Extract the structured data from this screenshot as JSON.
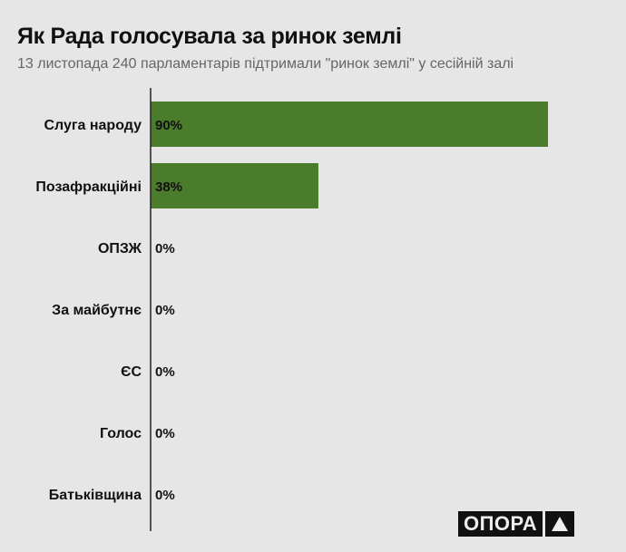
{
  "title": "Як Рада голосувала за ринок землі",
  "subtitle": "13 листопада 240 парламентарів підтримали \"ринок землі\" у сесійній залі",
  "logo": "ОПОРА",
  "colors": {
    "bar": "#4a7c2c",
    "background": "#e6e6e6"
  },
  "chart_data": {
    "type": "bar",
    "orientation": "horizontal",
    "categories": [
      "Слуга народу",
      "Позафракційні",
      "ОПЗЖ",
      "За майбутнє",
      "ЄС",
      "Голос",
      "Батьківщина"
    ],
    "values": [
      90,
      38,
      0,
      0,
      0,
      0,
      0
    ],
    "data_labels": [
      "90%",
      "38%",
      "0%",
      "0%",
      "0%",
      "0%",
      "0%"
    ],
    "xlim": [
      0,
      100
    ],
    "grid": false
  }
}
